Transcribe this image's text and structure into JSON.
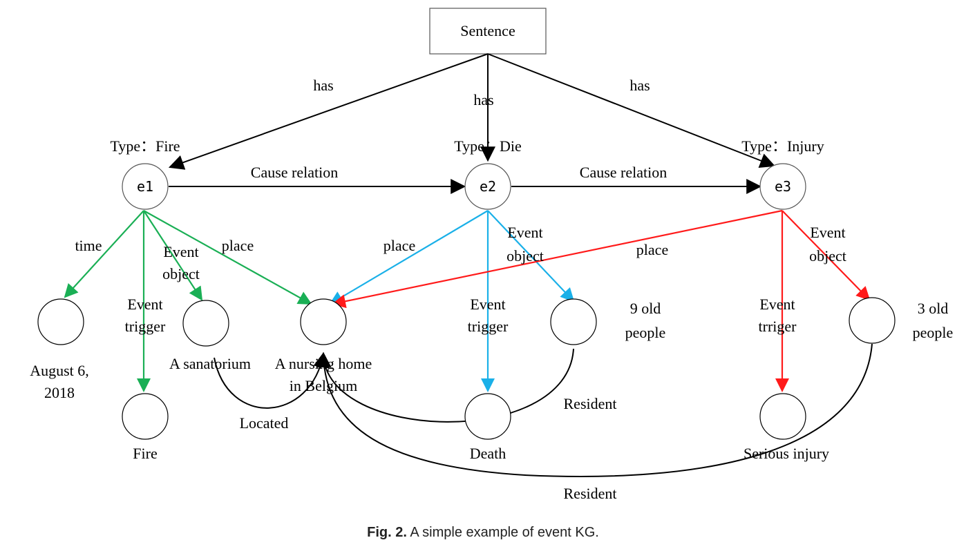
{
  "diagram": {
    "root": "Sentence",
    "root_edges": [
      "has",
      "has",
      "has"
    ],
    "events": [
      {
        "id": "e1",
        "type": "Type：Fire"
      },
      {
        "id": "e2",
        "type": "Type：Die"
      },
      {
        "id": "e3",
        "type": "Type：Injury"
      }
    ],
    "cause_labels": [
      "Cause relation",
      "Cause relation"
    ],
    "edge_labels": {
      "e1_time": "time",
      "e1_trigger": [
        "Event",
        "trigger"
      ],
      "e1_object": [
        "Event",
        "object"
      ],
      "e1_place": "place",
      "e2_place": "place",
      "e2_trigger": [
        "Event",
        "trigger"
      ],
      "e2_object": [
        "Event",
        "object"
      ],
      "e3_place": "place",
      "e3_trigger": [
        "Event",
        "trriger"
      ],
      "e3_object": [
        "Event",
        "object"
      ]
    },
    "nodes": {
      "time": [
        "August 6,",
        "2018"
      ],
      "fire": "Fire",
      "sanatorium": "A sanatorium",
      "nursing_home": [
        "A nursing home",
        "in Belgium"
      ],
      "death": "Death",
      "old9": [
        "9 old",
        "people"
      ],
      "injury": "Serious injury",
      "old3": [
        "3 old",
        "people"
      ]
    },
    "relations": {
      "located": "Located",
      "resident1": "Resident",
      "resident2": "Resident"
    },
    "colors": {
      "e1": "#1aaf55",
      "e2": "#1ab0e8",
      "e3": "#ff1a1a",
      "default": "#000000"
    }
  },
  "caption": {
    "label": "Fig. 2.",
    "text": "A simple example of event KG."
  }
}
